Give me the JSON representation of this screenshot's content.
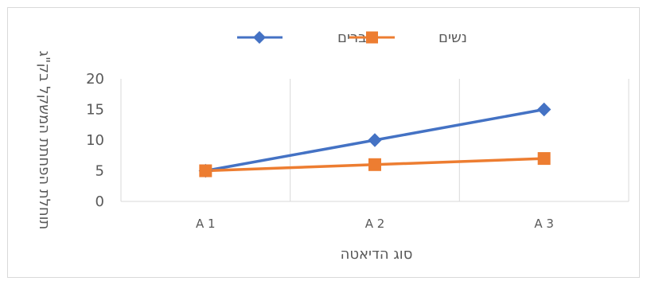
{
  "chart_data": {
    "type": "line",
    "categories": [
      "A 1",
      "A 2",
      "A 3"
    ],
    "series": [
      {
        "name": "גברים",
        "values": [
          5,
          10,
          15
        ],
        "color": "#4472C4",
        "marker": "diamond"
      },
      {
        "name": "נשים",
        "values": [
          5,
          6,
          7
        ],
        "color": "#ED7D31",
        "marker": "square"
      }
    ],
    "title": "",
    "xlabel": "סוג הדיאטה",
    "ylabel": "תוחלת הפחתת המשקל בק\"ג",
    "ylim": [
      0,
      20
    ],
    "yticks": [
      "0",
      "5",
      "10",
      "15",
      "20"
    ],
    "grid": "vertical",
    "legend": "top-center"
  }
}
